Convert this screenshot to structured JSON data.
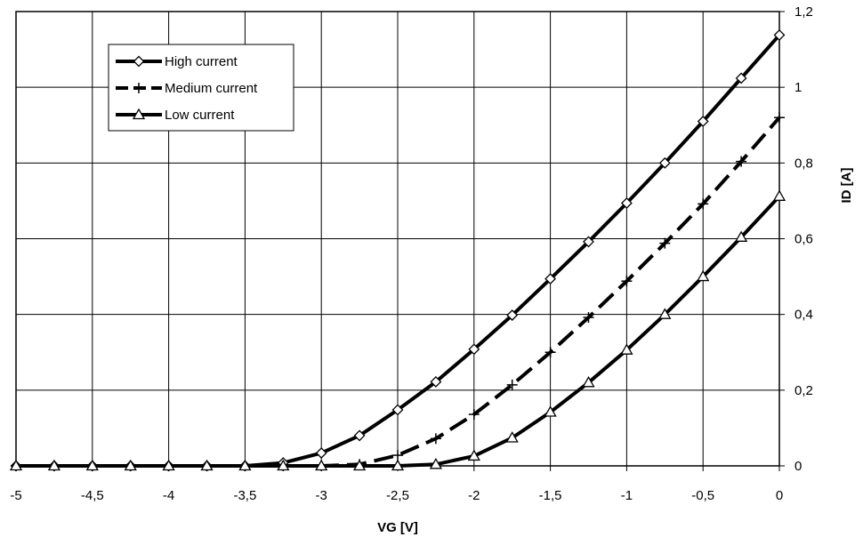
{
  "chart_data": {
    "type": "line",
    "xlabel": "VG [V]",
    "ylabel": "ID [A]",
    "xlim": [
      -5,
      0
    ],
    "ylim": [
      0,
      1.2
    ],
    "grid": true,
    "legend_position": "top-left",
    "x_ticks": [
      {
        "value": -5,
        "label": "-5"
      },
      {
        "value": -4.5,
        "label": "-4,5"
      },
      {
        "value": -4,
        "label": "-4"
      },
      {
        "value": -3.5,
        "label": "-3,5"
      },
      {
        "value": -3,
        "label": "-3"
      },
      {
        "value": -2.5,
        "label": "-2,5"
      },
      {
        "value": -2,
        "label": "-2"
      },
      {
        "value": -1.5,
        "label": "-1,5"
      },
      {
        "value": -1,
        "label": "-1"
      },
      {
        "value": -0.5,
        "label": "-0,5"
      },
      {
        "value": 0,
        "label": "0"
      }
    ],
    "y_ticks": [
      {
        "value": 0,
        "label": "0"
      },
      {
        "value": 0.2,
        "label": "0,2"
      },
      {
        "value": 0.4,
        "label": "0,4"
      },
      {
        "value": 0.6,
        "label": "0,6"
      },
      {
        "value": 0.8,
        "label": "0,8"
      },
      {
        "value": 1,
        "label": "1"
      },
      {
        "value": 1.2,
        "label": "1,2"
      }
    ],
    "x": [
      -5,
      -4.75,
      -4.5,
      -4.25,
      -4,
      -3.75,
      -3.5,
      -3.25,
      -3,
      -2.75,
      -2.5,
      -2.25,
      -2,
      -1.75,
      -1.5,
      -1.25,
      -1,
      -0.75,
      -0.5,
      -0.25,
      0
    ],
    "series": [
      {
        "name": "High current",
        "marker": "diamond",
        "dash": "solid",
        "values": [
          0,
          0,
          0,
          0,
          0,
          0,
          0,
          0.008,
          0.034,
          0.08,
          0.148,
          0.222,
          0.308,
          0.398,
          0.494,
          0.592,
          0.694,
          0.8,
          0.91,
          1.024,
          1.138
        ]
      },
      {
        "name": "Medium current",
        "marker": "plus",
        "dash": "dashed",
        "values": [
          0,
          0,
          0,
          0,
          0,
          0,
          0,
          0,
          0,
          0.004,
          0.028,
          0.072,
          0.136,
          0.214,
          0.3,
          0.392,
          0.488,
          0.588,
          0.692,
          0.804,
          0.92
        ]
      },
      {
        "name": "Low current",
        "marker": "triangle",
        "dash": "solid",
        "values": [
          0,
          0,
          0,
          0,
          0,
          0,
          0,
          0,
          0,
          0,
          0,
          0.004,
          0.026,
          0.074,
          0.142,
          0.22,
          0.306,
          0.4,
          0.5,
          0.604,
          0.712
        ]
      }
    ]
  }
}
